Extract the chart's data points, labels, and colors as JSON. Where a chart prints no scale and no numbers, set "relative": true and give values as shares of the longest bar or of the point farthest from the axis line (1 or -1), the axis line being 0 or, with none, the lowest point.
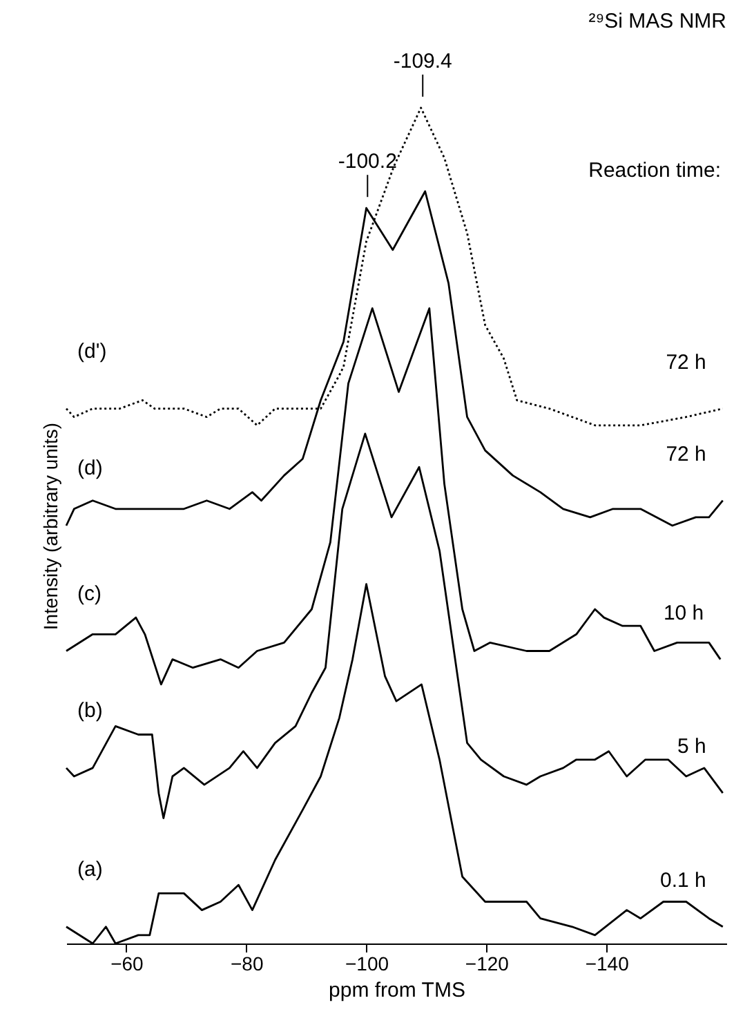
{
  "chart_data": {
    "type": "line",
    "title": "²⁹Si MAS NMR",
    "xlabel": "ppm from TMS",
    "ylabel": "Intensity (arbitrary units)",
    "relative": true,
    "xlim": [
      -50,
      -160
    ],
    "xticks": [
      -60,
      -80,
      -100,
      -120,
      -140
    ],
    "grid": false,
    "annotations": [
      "Reaction time:",
      "72 h",
      "72 h",
      "10 h",
      "5 h",
      "0.1 h",
      {
        "text": "-100.2",
        "x": -100.2,
        "y": 0.88
      },
      {
        "text": "-109.4",
        "x": -109.4,
        "y": 1.0
      }
    ],
    "series": [
      {
        "name": "(d')",
        "color": "#000000",
        "line_style": "dotted",
        "x": [
          -50,
          -51.3,
          -54.4,
          -58.9,
          -62.7,
          -64.7,
          -69.6,
          -73.4,
          -75.7,
          -78.7,
          -81.8,
          -84.8,
          -92.4,
          -95.5,
          -96.2,
          -100,
          -104.6,
          -109.1,
          -113,
          -116.8,
          -119.8,
          -122.9,
          -125.1,
          -130.5,
          -138.1,
          -145.7,
          -153.3,
          -159.4
        ],
        "values": [
          0.64,
          0.63,
          0.64,
          0.64,
          0.65,
          0.64,
          0.64,
          0.63,
          0.64,
          0.64,
          0.62,
          0.64,
          0.64,
          0.68,
          0.69,
          0.84,
          0.93,
          1.0,
          0.94,
          0.85,
          0.74,
          0.7,
          0.65,
          0.64,
          0.62,
          0.62,
          0.63,
          0.64
        ]
      },
      {
        "name": "(d)",
        "color": "#000000",
        "line_style": "solid",
        "x": [
          -50,
          -51.3,
          -54.4,
          -58.2,
          -62,
          -65.8,
          -69.6,
          -73.4,
          -77.2,
          -81,
          -82.5,
          -86.3,
          -89.4,
          -92.4,
          -96.2,
          -100,
          -104.4,
          -109.8,
          -113.7,
          -116.8,
          -119.8,
          -124.4,
          -129,
          -132.8,
          -137.3,
          -141.1,
          -145.7,
          -151,
          -154.9,
          -157.1,
          -159.4
        ],
        "values": [
          0.5,
          0.52,
          0.53,
          0.52,
          0.52,
          0.52,
          0.52,
          0.53,
          0.52,
          0.54,
          0.53,
          0.56,
          0.58,
          0.65,
          0.72,
          0.88,
          0.83,
          0.9,
          0.79,
          0.63,
          0.59,
          0.56,
          0.54,
          0.52,
          0.51,
          0.52,
          0.52,
          0.5,
          0.51,
          0.51,
          0.53
        ]
      },
      {
        "name": "(c)",
        "color": "#000000",
        "line_style": "solid",
        "x": [
          -50,
          -54.4,
          -58.2,
          -61.6,
          -63.1,
          -65.8,
          -67.7,
          -71.1,
          -75.7,
          -78.7,
          -81.8,
          -86.3,
          -90.9,
          -94,
          -97,
          -101,
          -105.4,
          -110.5,
          -113,
          -116,
          -118,
          -120.6,
          -126.7,
          -130.5,
          -135,
          -138.1,
          -139.6,
          -142.7,
          -145.7,
          -148,
          -151.8,
          -154.9,
          -157.1,
          -159
        ],
        "values": [
          0.35,
          0.37,
          0.37,
          0.39,
          0.37,
          0.31,
          0.34,
          0.33,
          0.34,
          0.33,
          0.35,
          0.36,
          0.4,
          0.48,
          0.67,
          0.76,
          0.66,
          0.76,
          0.55,
          0.4,
          0.35,
          0.36,
          0.35,
          0.35,
          0.37,
          0.4,
          0.39,
          0.38,
          0.38,
          0.35,
          0.36,
          0.36,
          0.36,
          0.34
        ]
      },
      {
        "name": "(b)",
        "color": "#000000",
        "line_style": "solid",
        "x": [
          -50,
          -51.3,
          -54.4,
          -58.2,
          -62,
          -64.3,
          -65.4,
          -66.2,
          -67.7,
          -69.6,
          -73,
          -77.2,
          -79.5,
          -81.8,
          -84.8,
          -88.2,
          -90.9,
          -93.2,
          -96,
          -99.8,
          -104.2,
          -108.8,
          -112.2,
          -116.8,
          -119.1,
          -122.9,
          -126.7,
          -129,
          -132.8,
          -135,
          -138.1,
          -140.4,
          -143.4,
          -146.5,
          -150.3,
          -153.3,
          -156.3,
          -159.4
        ],
        "values": [
          0.21,
          0.2,
          0.21,
          0.26,
          0.25,
          0.25,
          0.18,
          0.15,
          0.2,
          0.21,
          0.19,
          0.21,
          0.23,
          0.21,
          0.24,
          0.26,
          0.3,
          0.33,
          0.52,
          0.61,
          0.51,
          0.57,
          0.47,
          0.24,
          0.22,
          0.2,
          0.19,
          0.2,
          0.21,
          0.22,
          0.22,
          0.23,
          0.2,
          0.22,
          0.22,
          0.2,
          0.21,
          0.18
        ]
      },
      {
        "name": "(a)",
        "color": "#000000",
        "line_style": "solid",
        "x": [
          -50,
          -54.4,
          -56.6,
          -58.2,
          -62,
          -63.9,
          -65.4,
          -69.6,
          -72.6,
          -75.7,
          -78.7,
          -81,
          -84.8,
          -89.4,
          -92.4,
          -95.5,
          -97.7,
          -100,
          -103.1,
          -105,
          -109.2,
          -112.2,
          -116,
          -119.8,
          -122.9,
          -126.7,
          -129,
          -134.3,
          -138.1,
          -143.4,
          -145.7,
          -149.5,
          -153.3,
          -157.1,
          -159.4
        ],
        "values": [
          0.02,
          0.0,
          0.02,
          0.0,
          0.01,
          0.01,
          0.06,
          0.06,
          0.04,
          0.05,
          0.07,
          0.04,
          0.1,
          0.16,
          0.2,
          0.27,
          0.34,
          0.43,
          0.32,
          0.29,
          0.31,
          0.22,
          0.08,
          0.05,
          0.05,
          0.05,
          0.03,
          0.02,
          0.01,
          0.04,
          0.03,
          0.05,
          0.05,
          0.03,
          0.02
        ]
      }
    ]
  }
}
